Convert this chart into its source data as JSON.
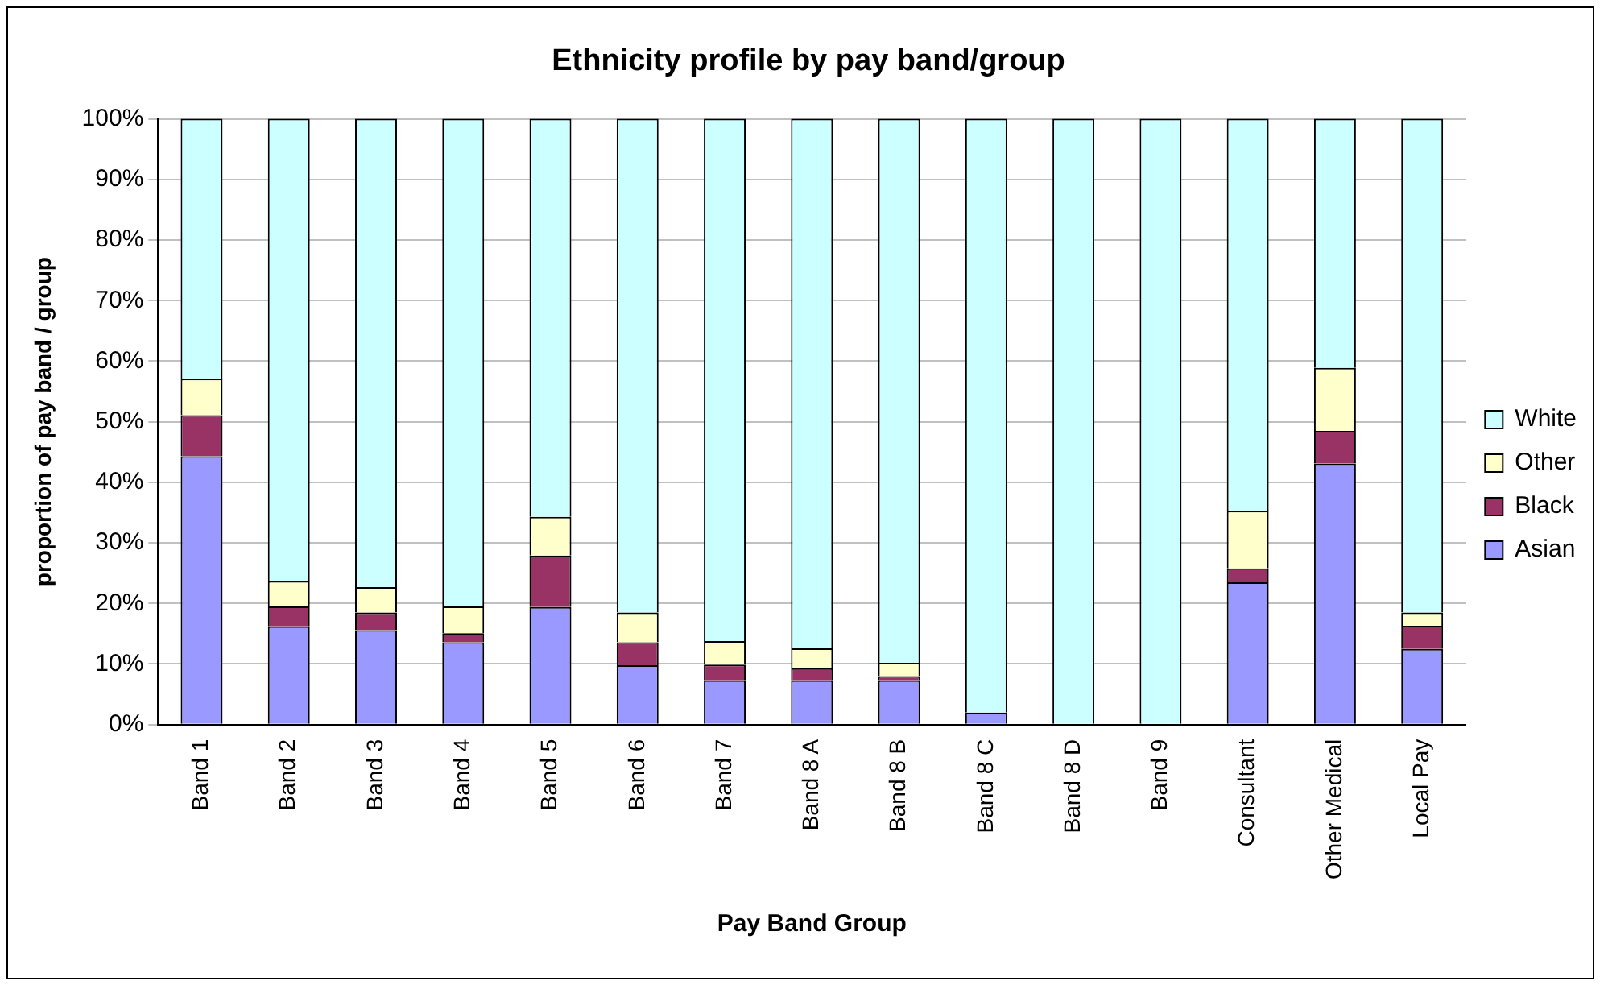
{
  "chart_data": {
    "type": "bar",
    "stacked": true,
    "title": "Ethnicity profile by pay band/group",
    "xlabel": "Pay Band Group",
    "ylabel": "proportion of pay band / group",
    "categories": [
      "Band 1",
      "Band 2",
      "Band 3",
      "Band 4",
      "Band 5",
      "Band 6",
      "Band 7",
      "Band 8 A",
      "Band 8 B",
      "Band 8 C",
      "Band 8 D",
      "Band 9",
      "Consultant",
      "Other Medical",
      "Local Pay"
    ],
    "series": [
      {
        "name": "Asian",
        "color": "#9999ff",
        "values": [
          44.3,
          16.2,
          15.6,
          13.6,
          19.4,
          9.8,
          7.3,
          7.3,
          7.3,
          2.0,
          0,
          0,
          23.5,
          43.1,
          12.5
        ]
      },
      {
        "name": "Black",
        "color": "#993366",
        "values": [
          6.8,
          3.3,
          2.9,
          1.5,
          8.5,
          3.8,
          2.6,
          2.0,
          0.7,
          0,
          0,
          0,
          2.3,
          5.4,
          3.8
        ]
      },
      {
        "name": "Other",
        "color": "#ffffcc",
        "values": [
          6.0,
          4.2,
          4.2,
          4.4,
          6.4,
          4.9,
          3.9,
          3.3,
          2.2,
          0,
          0,
          0,
          9.5,
          10.4,
          2.2
        ]
      },
      {
        "name": "White",
        "color": "#ccffff",
        "values": [
          42.9,
          76.3,
          77.3,
          80.5,
          65.7,
          81.5,
          86.2,
          87.4,
          89.8,
          98.0,
          100,
          100,
          64.7,
          41.1,
          81.5
        ]
      }
    ],
    "ylim": [
      0,
      100
    ],
    "yticks": [
      {
        "value": 0,
        "label": "0%"
      },
      {
        "value": 10,
        "label": "10%"
      },
      {
        "value": 20,
        "label": "20%"
      },
      {
        "value": 30,
        "label": "30%"
      },
      {
        "value": 40,
        "label": "40%"
      },
      {
        "value": 50,
        "label": "50%"
      },
      {
        "value": 60,
        "label": "60%"
      },
      {
        "value": 70,
        "label": "70%"
      },
      {
        "value": 80,
        "label": "80%"
      },
      {
        "value": 90,
        "label": "90%"
      },
      {
        "value": 100,
        "label": "100%"
      }
    ],
    "grid": "y",
    "legend": "right"
  }
}
